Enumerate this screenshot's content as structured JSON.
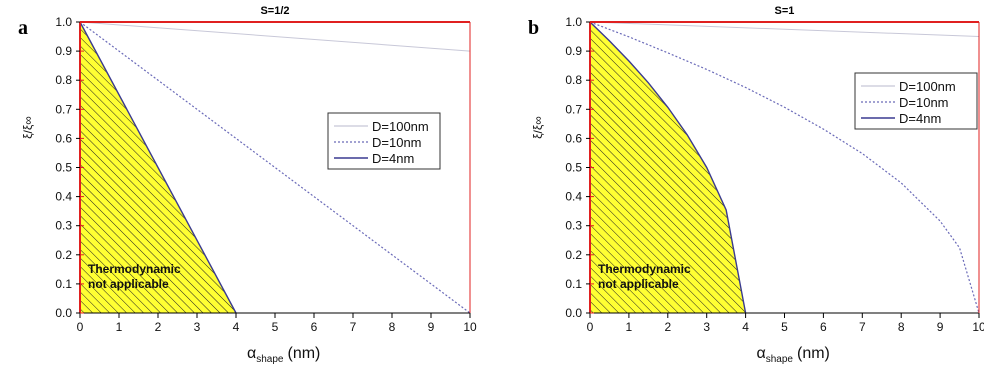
{
  "chart_data": [
    {
      "type": "line",
      "panel_label": "a",
      "title": "S=1/2",
      "xlabel_main": "α",
      "xlabel_sub": "shape",
      "xlabel_unit": "(nm)",
      "ylabel": "ξ/ξ∞",
      "xlim": [
        0,
        10
      ],
      "ylim": [
        0,
        1
      ],
      "x_ticks": [
        0,
        1,
        2,
        3,
        4,
        5,
        6,
        7,
        8,
        9,
        10
      ],
      "y_ticks": [
        "0.0",
        "0.1",
        "0.2",
        "0.3",
        "0.4",
        "0.5",
        "0.6",
        "0.7",
        "0.8",
        "0.9",
        "1.0"
      ],
      "grid": false,
      "legend_placement": "right-middle",
      "series": [
        {
          "name": "D=100nm",
          "color": "#c8c8d8",
          "style": "solid",
          "x": [
            0,
            10
          ],
          "y": [
            1.0,
            0.9
          ]
        },
        {
          "name": "D=10nm",
          "color": "#6a6ab8",
          "style": "dotted",
          "x": [
            0,
            10
          ],
          "y": [
            1.0,
            0.0
          ]
        },
        {
          "name": "D=4nm",
          "color": "#3a3a90",
          "style": "solid",
          "x": [
            0,
            4
          ],
          "y": [
            1.0,
            0.0
          ]
        }
      ],
      "annotation": {
        "line1": "Thermodynamic",
        "line2": "not applicable"
      },
      "colors": {
        "frame": "#e02020",
        "hatch_fill": "#ffff33",
        "hatch_line": "#222222"
      }
    },
    {
      "type": "line",
      "panel_label": "b",
      "title": "S=1",
      "xlabel_main": "α",
      "xlabel_sub": "shape",
      "xlabel_unit": "(nm)",
      "ylabel": "ξ/ξ∞",
      "xlim": [
        0,
        10
      ],
      "ylim": [
        0,
        1
      ],
      "x_ticks": [
        0,
        1,
        2,
        3,
        4,
        5,
        6,
        7,
        8,
        9,
        10
      ],
      "y_ticks": [
        "0.0",
        "0.1",
        "0.2",
        "0.3",
        "0.4",
        "0.5",
        "0.6",
        "0.7",
        "0.8",
        "0.9",
        "1.0"
      ],
      "grid": false,
      "legend_placement": "top-right",
      "series": [
        {
          "name": "D=100nm",
          "color": "#c8c8d8",
          "style": "solid",
          "x": [
            0,
            10
          ],
          "y": [
            1.0,
            0.95
          ]
        },
        {
          "name": "D=10nm",
          "color": "#6a6ab8",
          "style": "dotted",
          "x": [
            0,
            1,
            2,
            3,
            4,
            5,
            6,
            7,
            8,
            9,
            9.5,
            10
          ],
          "y": [
            1.0,
            0.949,
            0.894,
            0.837,
            0.775,
            0.707,
            0.632,
            0.548,
            0.447,
            0.316,
            0.224,
            0.0
          ]
        },
        {
          "name": "D=4nm",
          "color": "#3a3a90",
          "style": "solid",
          "x": [
            0,
            0.5,
            1,
            1.5,
            2,
            2.5,
            3,
            3.5,
            4
          ],
          "y": [
            1.0,
            0.935,
            0.866,
            0.791,
            0.707,
            0.612,
            0.5,
            0.354,
            0.0
          ]
        }
      ],
      "annotation": {
        "line1": "Thermodynamic",
        "line2": "not applicable"
      },
      "colors": {
        "frame": "#e02020",
        "hatch_fill": "#ffff33",
        "hatch_line": "#222222"
      }
    }
  ]
}
